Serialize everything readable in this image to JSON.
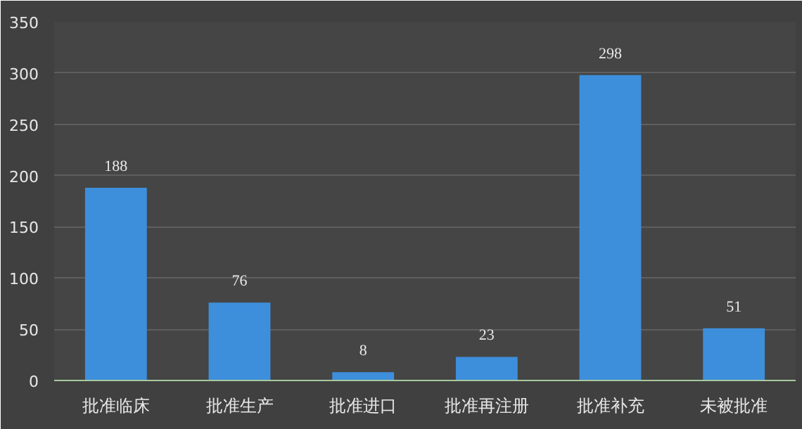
{
  "chart_data": {
    "type": "bar",
    "categories": [
      "批准临床",
      "批准生产",
      "批准进口",
      "批准再注册",
      "批准补充",
      "未被批准"
    ],
    "values": [
      188,
      76,
      8,
      23,
      298,
      51
    ],
    "color": "#3d8fdc",
    "ylim": [
      0,
      350
    ],
    "yticks": [
      0,
      50,
      100,
      150,
      200,
      250,
      300,
      350
    ],
    "grid": "y",
    "data_labels": true
  }
}
